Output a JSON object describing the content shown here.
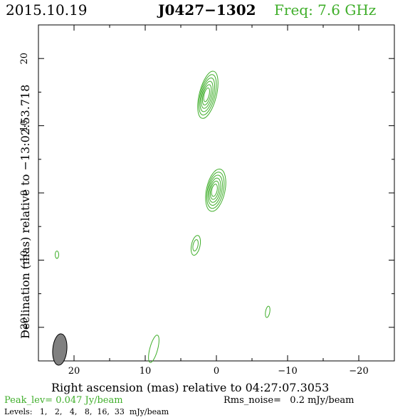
{
  "header": {
    "date": "2015.10.19",
    "source": "J0427−1302",
    "freq": "Freq: 7.6 GHz"
  },
  "footer": {
    "peak": "Peak_lev=  0.047 Jy/beam",
    "rms": "Rms_noise=   0.2 mJy/beam",
    "levels": "Levels:   1,   2,   4,   8,  16,  33  mJy/beam"
  },
  "colors": {
    "contour": "#3fae2a",
    "text_green": "#3fae2a",
    "axis": "#000000",
    "beam_fill": "#808080"
  },
  "chart_data": {
    "type": "contour",
    "xlabel": "Right ascension (mas) relative to 04:27:07.3053",
    "ylabel": "Declination (mas) relative to −13:02:53.718",
    "xlim": [
      25,
      -25
    ],
    "ylim": [
      -25,
      25
    ],
    "x_ticks": [
      20,
      10,
      0,
      -10,
      -20
    ],
    "x_tick_labels": [
      "20",
      "10",
      "0",
      "−10",
      "−20"
    ],
    "y_ticks": [
      20,
      10,
      0,
      -10,
      -20
    ],
    "y_tick_labels": [
      "20",
      "10",
      "0",
      "−10",
      "−20"
    ],
    "levels_mJy": [
      1,
      2,
      4,
      8,
      16,
      33
    ],
    "peak_Jy_per_beam": 0.047,
    "rms_mJy_per_beam": 0.2,
    "components": [
      {
        "x": 0.1,
        "y": 0.4,
        "sx": 1.3,
        "sy": 3.2,
        "angle": 12,
        "rings": 6
      },
      {
        "x": 1.2,
        "y": 14.6,
        "sx": 1.2,
        "sy": 3.6,
        "angle": 14,
        "rings": 6
      },
      {
        "x": 2.9,
        "y": -7.8,
        "sx": 0.6,
        "sy": 1.5,
        "angle": 12,
        "rings": 2
      },
      {
        "x": 22.4,
        "y": -9.2,
        "sx": 0.25,
        "sy": 0.55,
        "angle": 0,
        "rings": 1
      },
      {
        "x": -7.2,
        "y": -17.7,
        "sx": 0.3,
        "sy": 0.85,
        "angle": 10,
        "rings": 1
      },
      {
        "x": 8.8,
        "y": -23.2,
        "sx": 0.55,
        "sy": 2.1,
        "angle": 15,
        "rings": 1
      }
    ],
    "beam": {
      "x": 22.0,
      "y": -23.3,
      "major": 2.6,
      "minor": 1.1,
      "angle": 5
    }
  }
}
